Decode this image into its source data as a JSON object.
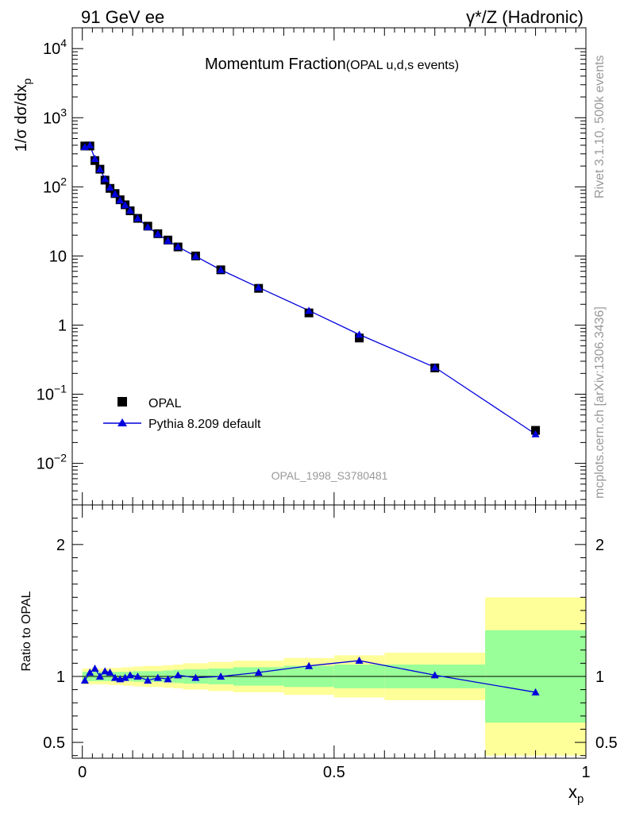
{
  "header": {
    "left": "91 GeV ee",
    "right": "γ*/Z (Hadronic)"
  },
  "side_text": {
    "rivet": "Rivet 3.1.10,  500k events",
    "mcplots": "mcplots.cern.ch [arXiv:1306.3436]"
  },
  "colors": {
    "data": "#000000",
    "mc": "#0000dd",
    "band_inner": "#99ff99",
    "band_outer": "#ffff99"
  },
  "chart_data": [
    {
      "type": "scatter",
      "title": "Momentum Fraction",
      "title_suffix": "(OPAL u,d,s events)",
      "ylabel": "1/σ dσ/dx",
      "ylabel_sub": "p",
      "analysis_tag": "OPAL_1998_S3780481",
      "yscale": "log",
      "ylim": [
        0.0025,
        20000
      ],
      "xlim": [
        -0.02,
        1.0
      ],
      "y_ticks": [
        {
          "value": 10000,
          "base": "10",
          "exp": "4"
        },
        {
          "value": 1000,
          "base": "10",
          "exp": "3"
        },
        {
          "value": 100,
          "base": "10",
          "exp": "2"
        },
        {
          "value": 10,
          "base": "10",
          "exp": ""
        },
        {
          "value": 1,
          "base": "1",
          "exp": ""
        },
        {
          "value": 0.1,
          "base": "10",
          "exp": "−1"
        },
        {
          "value": 0.01,
          "base": "10",
          "exp": "−2"
        }
      ],
      "legend": {
        "position": "bottom-left",
        "entries": [
          "OPAL",
          "Pythia 8.209 default"
        ]
      },
      "series": [
        {
          "name": "OPAL",
          "marker": "square",
          "x": [
            0.005,
            0.015,
            0.025,
            0.035,
            0.045,
            0.055,
            0.065,
            0.075,
            0.085,
            0.095,
            0.11,
            0.13,
            0.15,
            0.17,
            0.19,
            0.225,
            0.275,
            0.35,
            0.45,
            0.55,
            0.7,
            0.9
          ],
          "y": [
            390,
            390,
            240,
            180,
            125,
            95,
            80,
            65,
            55,
            45,
            35,
            27,
            21,
            17,
            13.5,
            10,
            6.3,
            3.4,
            1.5,
            0.65,
            0.24,
            0.03
          ]
        },
        {
          "name": "Pythia 8.209 default",
          "marker": "triangle",
          "x": [
            0.005,
            0.015,
            0.025,
            0.035,
            0.045,
            0.055,
            0.065,
            0.075,
            0.085,
            0.095,
            0.11,
            0.13,
            0.15,
            0.17,
            0.19,
            0.225,
            0.275,
            0.35,
            0.45,
            0.55,
            0.7,
            0.9
          ],
          "y": [
            378,
            402,
            255,
            180,
            130,
            98,
            79,
            64,
            54.5,
            45.5,
            35,
            26.3,
            20.8,
            16.6,
            13.6,
            9.9,
            6.3,
            3.5,
            1.62,
            0.73,
            0.245,
            0.0265
          ]
        }
      ]
    },
    {
      "type": "line",
      "ylabel": "Ratio to OPAL",
      "xlabel": "x",
      "xlabel_sub": "p",
      "ylim": [
        0.38,
        2.3
      ],
      "xlim": [
        -0.02,
        1.0
      ],
      "x_ticks": [
        {
          "value": 0,
          "label": "0"
        },
        {
          "value": 0.5,
          "label": "0.5"
        },
        {
          "value": 1,
          "label": "1"
        }
      ],
      "y_ticks": [
        {
          "value": 0.5,
          "label": "0.5"
        },
        {
          "value": 1,
          "label": "1"
        },
        {
          "value": 2,
          "label": "2"
        }
      ],
      "bands": {
        "edges": [
          0,
          0.01,
          0.02,
          0.03,
          0.04,
          0.05,
          0.06,
          0.07,
          0.08,
          0.09,
          0.1,
          0.12,
          0.14,
          0.16,
          0.18,
          0.2,
          0.25,
          0.3,
          0.4,
          0.5,
          0.6,
          0.8,
          1.0
        ],
        "inner": [
          0.035,
          0.035,
          0.035,
          0.035,
          0.035,
          0.035,
          0.035,
          0.035,
          0.035,
          0.035,
          0.04,
          0.04,
          0.04,
          0.045,
          0.05,
          0.055,
          0.06,
          0.07,
          0.08,
          0.09,
          0.09,
          0.35
        ],
        "outer": [
          0.06,
          0.06,
          0.06,
          0.06,
          0.06,
          0.065,
          0.065,
          0.065,
          0.07,
          0.07,
          0.075,
          0.08,
          0.08,
          0.085,
          0.09,
          0.1,
          0.11,
          0.12,
          0.14,
          0.16,
          0.18,
          0.6
        ]
      },
      "series": [
        {
          "name": "Pythia 8.209 default",
          "x": [
            0.005,
            0.015,
            0.025,
            0.035,
            0.045,
            0.055,
            0.065,
            0.075,
            0.085,
            0.095,
            0.11,
            0.13,
            0.15,
            0.17,
            0.19,
            0.225,
            0.275,
            0.35,
            0.45,
            0.55,
            0.7,
            0.9
          ],
          "y": [
            0.97,
            1.03,
            1.06,
            1.0,
            1.04,
            1.03,
            0.99,
            0.98,
            0.99,
            1.01,
            1.0,
            0.97,
            0.99,
            0.98,
            1.01,
            0.99,
            1.0,
            1.03,
            1.08,
            1.12,
            1.01,
            0.88
          ]
        }
      ]
    }
  ]
}
